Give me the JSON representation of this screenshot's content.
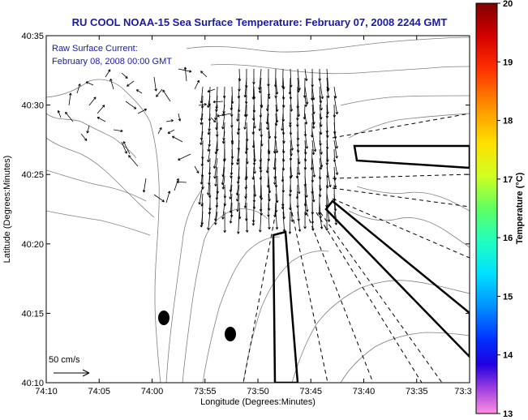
{
  "title": "RU COOL  NOAA-15  Sea Surface Temperature:  February 07, 2008 2244 GMT",
  "annotation_line1": "Raw Surface Current:",
  "annotation_line2": "February 08, 2008 00:00 GMT",
  "scale_label": "50 cm/s",
  "xlabel": "Longitude (Degrees:Minutes)",
  "ylabel": "Latitude (Degrees:Minutes)",
  "colorbar_label": "Temperature (°C)",
  "x_ticks": [
    "74:10",
    "74:05",
    "74:00",
    "73:55",
    "73:50",
    "73:45",
    "73:40",
    "73:35",
    "73:3"
  ],
  "y_ticks": [
    "40:35",
    "40:30",
    "40:25",
    "40:20",
    "40:15",
    "40:10"
  ],
  "colorbar_ticks": [
    "20",
    "19",
    "18",
    "17",
    "16",
    "15",
    "14",
    "13"
  ],
  "colors": {
    "title": "#1a1aa6",
    "annotation": "#1a1aa6",
    "contour": "#808080",
    "frame": "#000000"
  },
  "colorbar_range": [
    13,
    20
  ]
}
